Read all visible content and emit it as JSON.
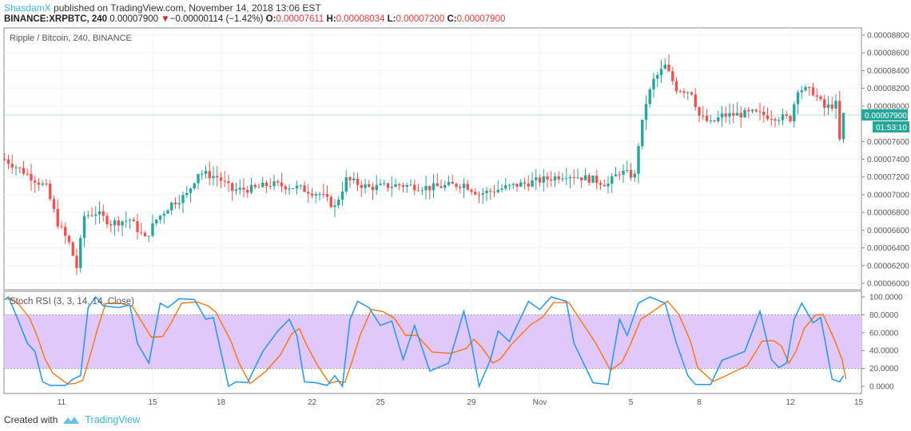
{
  "header": {
    "user": "ShasdamX",
    "published": " published on TradingView.com, November 14, 2018 13:06 EST",
    "symbol": "BINANCE:XRPBTC, 240",
    "last": "0.00007900",
    "change": "−0.00000114 (−1.42%)",
    "o_label": "O:",
    "o": "0.00007611",
    "h_label": "H:",
    "h": "0.00008034",
    "l_label": "L:",
    "l": "0.00007200",
    "c_label": "C:",
    "c": "0.00007900"
  },
  "footer": {
    "created": "Created with",
    "brand": "TradingView"
  },
  "chart_data": [
    {
      "type": "candlestick",
      "title": "Ripple / Bitcoin, 240, BINANCE",
      "interval_hours": 4,
      "ylim": [
        5.95e-05,
        8.91e-05
      ],
      "yticks": [
        "0.00008800",
        "0.00008600",
        "0.00008400",
        "0.00008200",
        "0.00008000",
        "0.00007600",
        "0.00007400",
        "0.00007200",
        "0.00007000",
        "0.00006800",
        "0.00006600",
        "0.00006400",
        "0.00006200",
        "0.00006000"
      ],
      "last_price": 7.9e-05,
      "last_price_label": "0.00007900",
      "countdown": "01:53:10",
      "colors": {
        "up": "#26a69a",
        "down": "#ef5350",
        "grid": "#eef3f6"
      },
      "close_approx": [
        [
          "2018-10-08T12:00",
          7.4e-05
        ],
        [
          "2018-10-09T08:00",
          7.26e-05
        ],
        [
          "2018-10-10T08:00",
          7.08e-05
        ],
        [
          "2018-10-10T20:00",
          6.68e-05
        ],
        [
          "2018-10-11T08:00",
          6.45e-05
        ],
        [
          "2018-10-11T16:00",
          6.18e-05
        ],
        [
          "2018-10-12T00:00",
          6.76e-05
        ],
        [
          "2018-10-12T12:00",
          6.8e-05
        ],
        [
          "2018-10-13T04:00",
          6.68e-05
        ],
        [
          "2018-10-14T00:00",
          6.72e-05
        ],
        [
          "2018-10-14T16:00",
          6.5e-05
        ],
        [
          "2018-10-15T04:00",
          6.72e-05
        ],
        [
          "2018-10-15T20:00",
          6.9e-05
        ],
        [
          "2018-10-16T12:00",
          7e-05
        ],
        [
          "2018-10-17T00:00",
          7.25e-05
        ],
        [
          "2018-10-17T20:00",
          7.2e-05
        ],
        [
          "2018-10-18T12:00",
          7.05e-05
        ],
        [
          "2018-10-19T12:00",
          7.07e-05
        ],
        [
          "2018-10-20T04:00",
          7.12e-05
        ],
        [
          "2018-10-21T08:00",
          7.08e-05
        ],
        [
          "2018-10-22T08:00",
          7.01e-05
        ],
        [
          "2018-10-23T00:00",
          6.86e-05
        ],
        [
          "2018-10-23T12:00",
          7.17e-05
        ],
        [
          "2018-10-24T12:00",
          7.08e-05
        ],
        [
          "2018-10-25T20:00",
          7.11e-05
        ],
        [
          "2018-10-27T04:00",
          7.08e-05
        ],
        [
          "2018-10-28T16:00",
          7.12e-05
        ],
        [
          "2018-10-29T08:00",
          7.01e-05
        ],
        [
          "2018-10-30T00:00",
          7.05e-05
        ],
        [
          "2018-10-31T00:00",
          7.11e-05
        ],
        [
          "2018-11-01T04:00",
          7.17e-05
        ],
        [
          "2018-11-02T04:00",
          7.23e-05
        ],
        [
          "2018-11-03T08:00",
          7.17e-05
        ],
        [
          "2018-11-04T00:00",
          7.12e-05
        ],
        [
          "2018-11-04T12:00",
          7.26e-05
        ],
        [
          "2018-11-05T04:00",
          7.21e-05
        ],
        [
          "2018-11-05T08:00",
          7.57e-05
        ],
        [
          "2018-11-05T16:00",
          8.04e-05
        ],
        [
          "2018-11-06T00:00",
          8.29e-05
        ],
        [
          "2018-11-06T12:00",
          8.45e-05
        ],
        [
          "2018-11-07T00:00",
          8.2e-05
        ],
        [
          "2018-11-07T16:00",
          8.16e-05
        ],
        [
          "2018-11-08T00:00",
          7.89e-05
        ],
        [
          "2018-11-08T12:00",
          7.8e-05
        ],
        [
          "2018-11-09T00:00",
          7.89e-05
        ],
        [
          "2018-11-10T08:00",
          7.92e-05
        ],
        [
          "2018-11-11T00:00",
          7.89e-05
        ],
        [
          "2018-11-12T00:00",
          7.86e-05
        ],
        [
          "2018-11-12T08:00",
          8.2e-05
        ],
        [
          "2018-11-13T00:00",
          8.16e-05
        ],
        [
          "2018-11-13T12:00",
          7.98e-05
        ],
        [
          "2018-11-14T00:00",
          8.02e-05
        ],
        [
          "2018-11-14T04:00",
          7.61e-05
        ],
        [
          "2018-11-14T08:00",
          7.9e-05
        ]
      ]
    },
    {
      "type": "line",
      "title": "Stoch RSI (3, 3, 14, 14, Close)",
      "ylim": [
        -6,
        104
      ],
      "yticks": [
        "100.0000",
        "80.0000",
        "60.0000",
        "40.0000",
        "20.0000",
        "0.0000"
      ],
      "band": [
        20,
        80
      ],
      "xticks": [
        [
          "2018-10-11",
          "11"
        ],
        [
          "2018-10-15",
          "15"
        ],
        [
          "2018-10-18",
          "18"
        ],
        [
          "2018-10-22",
          "22"
        ],
        [
          "2018-10-25",
          "25"
        ],
        [
          "2018-10-29",
          "29"
        ],
        [
          "2018-11-01",
          "Nov"
        ],
        [
          "2018-11-05",
          "5"
        ],
        [
          "2018-11-08",
          "8"
        ],
        [
          "2018-11-12",
          "12"
        ],
        [
          "2018-11-15",
          "15"
        ]
      ],
      "colors": {
        "k": "#2196f3",
        "d": "#ff6d00",
        "band": "#e1c8fa"
      },
      "k": [
        [
          "2018-10-08T12:00",
          97
        ],
        [
          "2018-10-08T16:00",
          100
        ],
        [
          "2018-10-09T00:00",
          80
        ],
        [
          "2018-10-09T12:00",
          48
        ],
        [
          "2018-10-09T20:00",
          39
        ],
        [
          "2018-10-10T04:00",
          5
        ],
        [
          "2018-10-10T12:00",
          1
        ],
        [
          "2018-10-11T04:00",
          1
        ],
        [
          "2018-10-11T12:00",
          8
        ],
        [
          "2018-10-11T20:00",
          12
        ],
        [
          "2018-10-12T04:00",
          88
        ],
        [
          "2018-10-12T12:00",
          100
        ],
        [
          "2018-10-12T20:00",
          90
        ],
        [
          "2018-10-13T12:00",
          88
        ],
        [
          "2018-10-14T00:00",
          91
        ],
        [
          "2018-10-14T08:00",
          48
        ],
        [
          "2018-10-14T20:00",
          26
        ],
        [
          "2018-10-15T08:00",
          93
        ],
        [
          "2018-10-15T16:00",
          88
        ],
        [
          "2018-10-16T04:00",
          98
        ],
        [
          "2018-10-16T20:00",
          97
        ],
        [
          "2018-10-17T08:00",
          75
        ],
        [
          "2018-10-17T16:00",
          77
        ],
        [
          "2018-10-18T08:00",
          0
        ],
        [
          "2018-10-18T16:00",
          5
        ],
        [
          "2018-10-19T04:00",
          4
        ],
        [
          "2018-10-19T20:00",
          39
        ],
        [
          "2018-10-20T12:00",
          62
        ],
        [
          "2018-10-21T00:00",
          75
        ],
        [
          "2018-10-21T08:00",
          57
        ],
        [
          "2018-10-21T16:00",
          5
        ],
        [
          "2018-10-22T04:00",
          4
        ],
        [
          "2018-10-22T16:00",
          1
        ],
        [
          "2018-10-23T00:00",
          12
        ],
        [
          "2018-10-23T08:00",
          0
        ],
        [
          "2018-10-23T16:00",
          75
        ],
        [
          "2018-10-24T00:00",
          95
        ],
        [
          "2018-10-24T12:00",
          88
        ],
        [
          "2018-10-25T00:00",
          68
        ],
        [
          "2018-10-25T12:00",
          73
        ],
        [
          "2018-10-26T00:00",
          30
        ],
        [
          "2018-10-26T12:00",
          68
        ],
        [
          "2018-10-27T04:00",
          17
        ],
        [
          "2018-10-28T00:00",
          26
        ],
        [
          "2018-10-28T16:00",
          84
        ],
        [
          "2018-10-29T00:00",
          48
        ],
        [
          "2018-10-29T08:00",
          0
        ],
        [
          "2018-10-29T20:00",
          30
        ],
        [
          "2018-10-30T04:00",
          62
        ],
        [
          "2018-10-30T16:00",
          50
        ],
        [
          "2018-10-31T12:00",
          95
        ],
        [
          "2018-11-01T00:00",
          86
        ],
        [
          "2018-11-01T12:00",
          100
        ],
        [
          "2018-11-02T04:00",
          95
        ],
        [
          "2018-11-02T12:00",
          48
        ],
        [
          "2018-11-03T08:00",
          4
        ],
        [
          "2018-11-04T00:00",
          2
        ],
        [
          "2018-11-04T12:00",
          75
        ],
        [
          "2018-11-04T20:00",
          57
        ],
        [
          "2018-11-05T08:00",
          93
        ],
        [
          "2018-11-05T20:00",
          100
        ],
        [
          "2018-11-06T12:00",
          93
        ],
        [
          "2018-11-07T00:00",
          48
        ],
        [
          "2018-11-07T12:00",
          12
        ],
        [
          "2018-11-07T20:00",
          2
        ],
        [
          "2018-11-08T12:00",
          2
        ],
        [
          "2018-11-09T00:00",
          29
        ],
        [
          "2018-11-10T00:00",
          39
        ],
        [
          "2018-11-10T16:00",
          84
        ],
        [
          "2018-11-11T04:00",
          30
        ],
        [
          "2018-11-11T12:00",
          21
        ],
        [
          "2018-11-11T20:00",
          26
        ],
        [
          "2018-11-12T04:00",
          75
        ],
        [
          "2018-11-12T12:00",
          93
        ],
        [
          "2018-11-13T00:00",
          71
        ],
        [
          "2018-11-13T08:00",
          77
        ],
        [
          "2018-11-13T20:00",
          8
        ],
        [
          "2018-11-14T04:00",
          5
        ],
        [
          "2018-11-14T08:00",
          12
        ]
      ]
    }
  ]
}
